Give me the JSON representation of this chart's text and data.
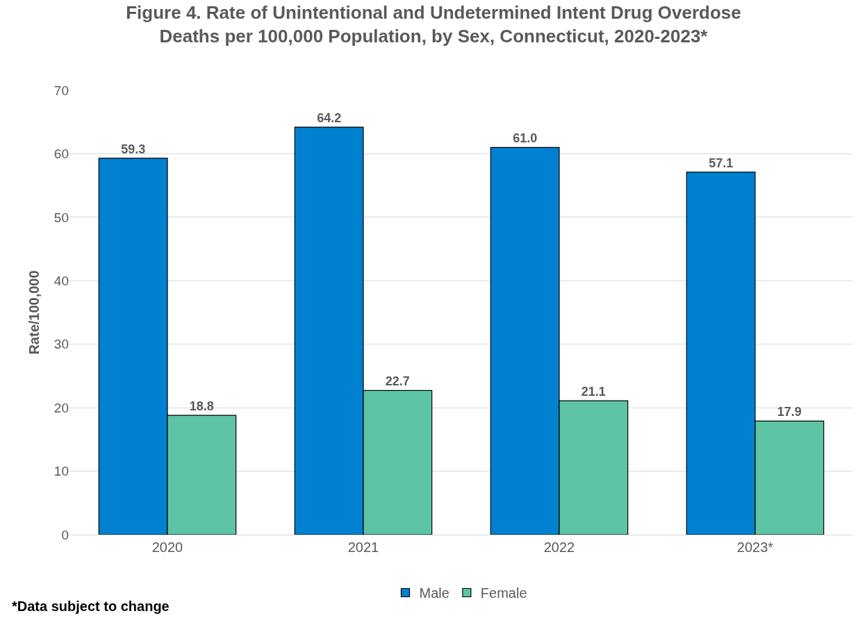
{
  "chart_data": {
    "type": "bar",
    "title": "Figure 4. Rate of Unintentional and Undetermined Intent Drug Overdose Deaths per 100,000 Population, by Sex, Connecticut, 2020-2023*",
    "ylabel": "Rate/100,000",
    "categories": [
      "2020",
      "2021",
      "2022",
      "2023*"
    ],
    "series": [
      {
        "name": "Male",
        "color": "#0080d0",
        "values": [
          59.3,
          64.2,
          61.0,
          57.1
        ],
        "value_labels": [
          "59.3",
          "64.2",
          "61.0",
          "57.1"
        ]
      },
      {
        "name": "Female",
        "color": "#5cc4a4",
        "values": [
          18.8,
          22.7,
          21.1,
          17.9
        ],
        "value_labels": [
          "18.8",
          "22.7",
          "21.1",
          "17.9"
        ]
      }
    ],
    "ylim": [
      0,
      70
    ],
    "yticks": [
      0,
      10,
      20,
      30,
      40,
      50,
      60,
      70
    ],
    "grid": "y",
    "legend": "bottom",
    "annotations": [
      "*Data subject to change"
    ]
  }
}
